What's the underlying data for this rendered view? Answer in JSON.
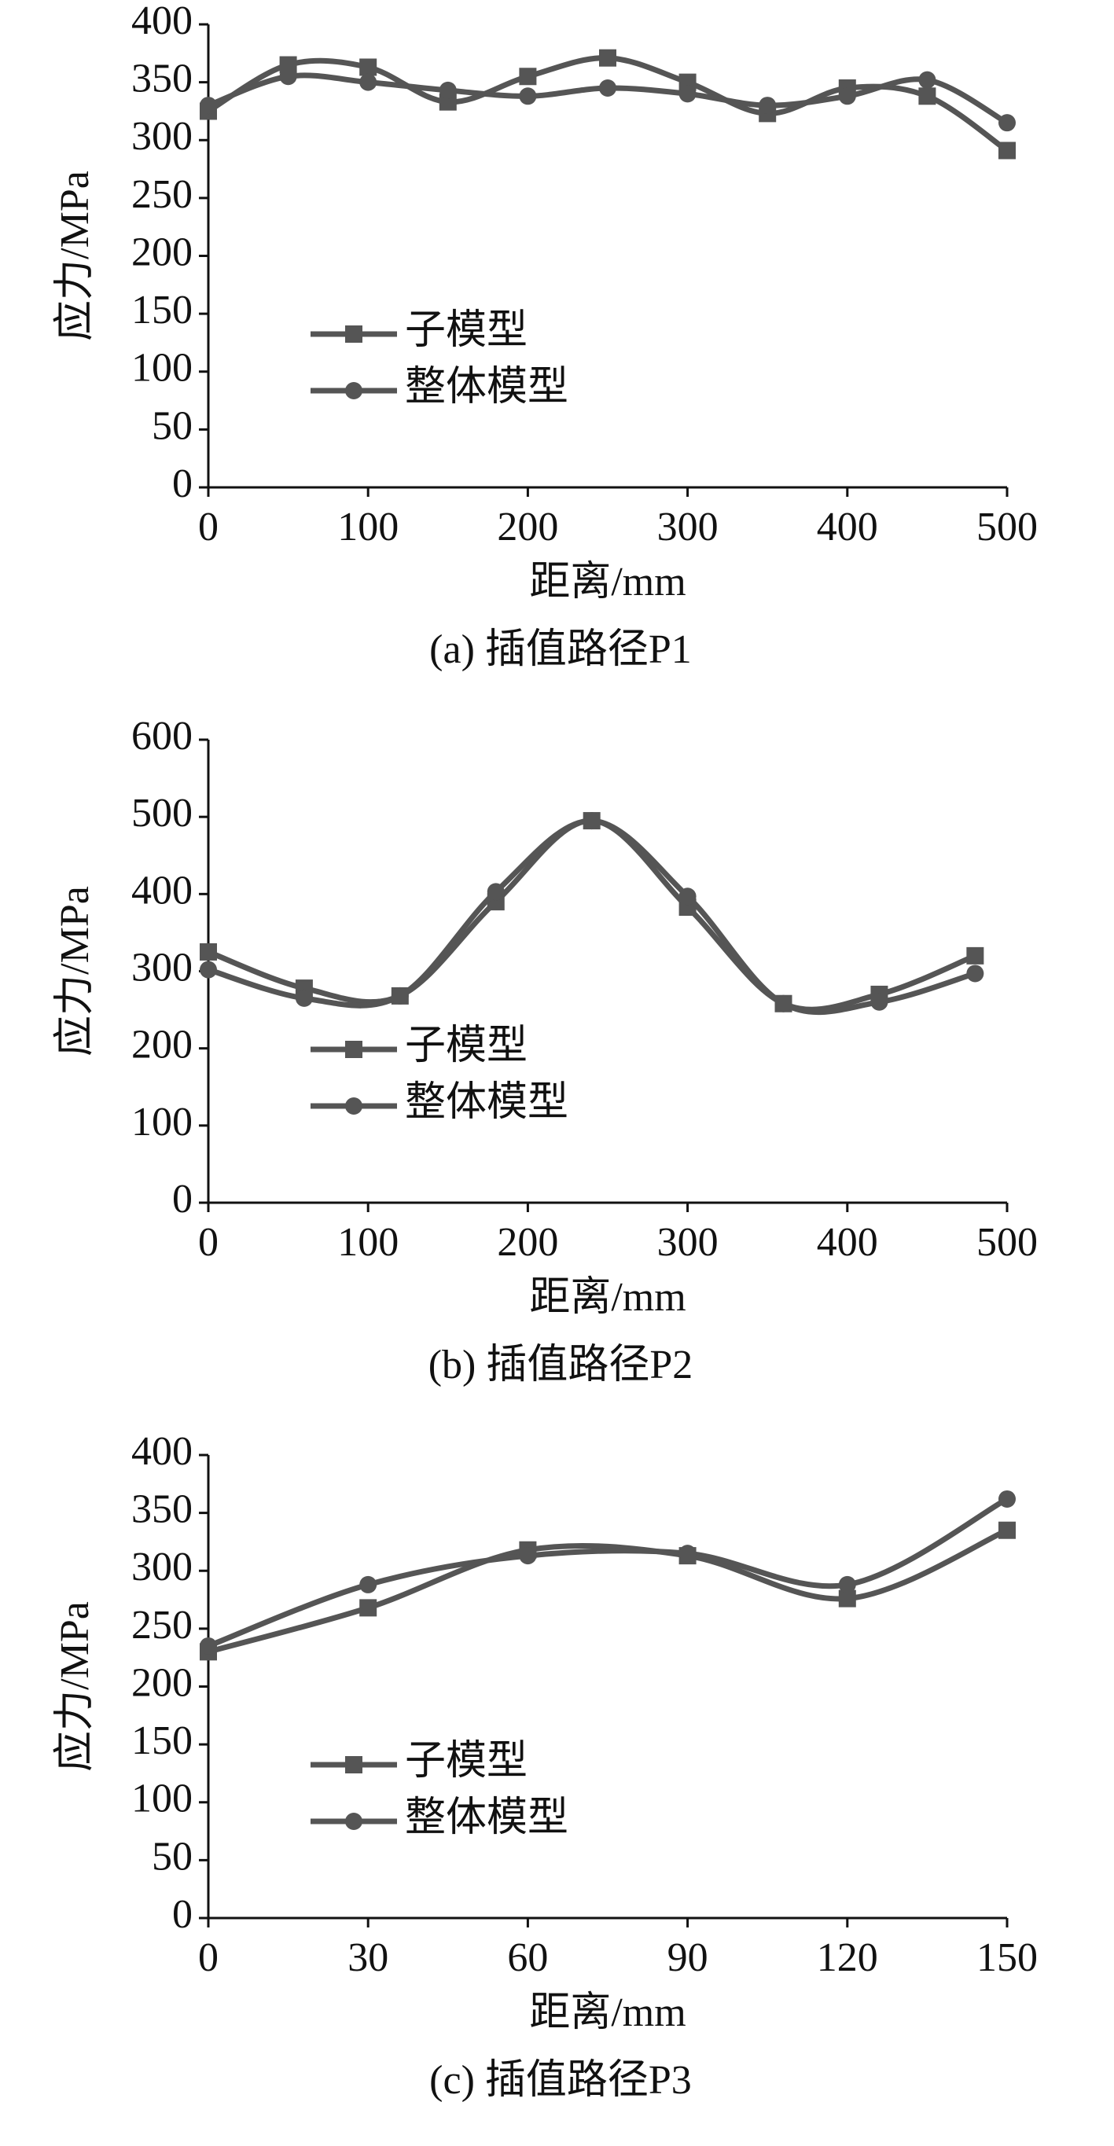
{
  "chart_data": [
    {
      "type": "line",
      "smooth": true,
      "caption": "(a) 插值路径P1",
      "xlabel": "距离/mm",
      "ylabel": "应力/MPa",
      "x": [
        0,
        50,
        100,
        150,
        200,
        250,
        300,
        350,
        400,
        450,
        500
      ],
      "series": [
        {
          "name": "子模型",
          "color": "#555555",
          "marker": "square",
          "values": [
            325,
            365,
            363,
            333,
            355,
            371,
            350,
            323,
            345,
            338,
            291
          ]
        },
        {
          "name": "整体模型",
          "color": "#555555",
          "marker": "circle",
          "values": [
            330,
            355,
            350,
            343,
            338,
            345,
            340,
            330,
            338,
            352,
            315
          ]
        }
      ],
      "xlim": [
        0,
        500
      ],
      "xticks": [
        0,
        100,
        200,
        300,
        400,
        500
      ],
      "ylim": [
        0,
        400
      ],
      "yticks": [
        0,
        50,
        100,
        150,
        200,
        250,
        300,
        350,
        400
      ]
    },
    {
      "type": "line",
      "smooth": true,
      "caption": "(b) 插值路径P2",
      "xlabel": "距离/mm",
      "ylabel": "应力/MPa",
      "x": [
        0,
        60,
        120,
        180,
        240,
        300,
        360,
        420,
        480
      ],
      "series": [
        {
          "name": "子模型",
          "color": "#555555",
          "marker": "square",
          "values": [
            325,
            278,
            268,
            390,
            495,
            383,
            258,
            270,
            320
          ]
        },
        {
          "name": "整体模型",
          "color": "#555555",
          "marker": "circle",
          "values": [
            302,
            265,
            268,
            403,
            495,
            397,
            258,
            260,
            297
          ]
        }
      ],
      "xlim": [
        0,
        500
      ],
      "xticks": [
        0,
        100,
        200,
        300,
        400,
        500
      ],
      "ylim": [
        0,
        600
      ],
      "yticks": [
        0,
        100,
        200,
        300,
        400,
        500,
        600
      ]
    },
    {
      "type": "line",
      "smooth": true,
      "caption": "(c) 插值路径P3",
      "xlabel": "距离/mm",
      "ylabel": "应力/MPa",
      "x": [
        0,
        30,
        60,
        90,
        120,
        150
      ],
      "series": [
        {
          "name": "子模型",
          "color": "#555555",
          "marker": "square",
          "values": [
            230,
            268,
            318,
            313,
            276,
            335
          ]
        },
        {
          "name": "整体模型",
          "color": "#555555",
          "marker": "circle",
          "values": [
            235,
            288,
            313,
            315,
            288,
            362
          ]
        }
      ],
      "xlim": [
        0,
        150
      ],
      "xticks": [
        0,
        30,
        60,
        90,
        120,
        150
      ],
      "ylim": [
        0,
        400
      ],
      "yticks": [
        0,
        50,
        100,
        150,
        200,
        250,
        300,
        350,
        400
      ]
    }
  ]
}
